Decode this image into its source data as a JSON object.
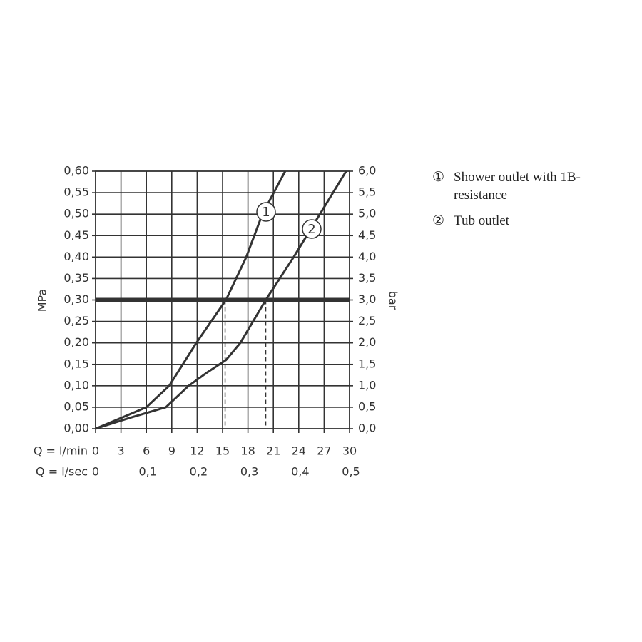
{
  "chart_data": {
    "type": "line",
    "x_label": "Q = l/min",
    "x2_label": "Q = l/sec",
    "y_label": "MPa",
    "y2_label": "bar",
    "xlim": [
      0,
      30
    ],
    "xticks": [
      0,
      3,
      6,
      9,
      12,
      15,
      18,
      21,
      24,
      27,
      30
    ],
    "x2lim": [
      0,
      0.5
    ],
    "x2ticks": [
      {
        "value": 0,
        "label": "0"
      },
      {
        "value": 0.1,
        "label": "0,1"
      },
      {
        "value": 0.2,
        "label": "0,2"
      },
      {
        "value": 0.3,
        "label": "0,3"
      },
      {
        "value": 0.4,
        "label": "0,4"
      },
      {
        "value": 0.5,
        "label": "0,5"
      }
    ],
    "ylim": [
      0,
      0.6
    ],
    "yticks": [
      {
        "value": 0,
        "label": "0,00"
      },
      {
        "value": 0.05,
        "label": "0,05"
      },
      {
        "value": 0.1,
        "label": "0,10"
      },
      {
        "value": 0.15,
        "label": "0,15"
      },
      {
        "value": 0.2,
        "label": "0,20"
      },
      {
        "value": 0.25,
        "label": "0,25"
      },
      {
        "value": 0.3,
        "label": "0,30"
      },
      {
        "value": 0.35,
        "label": "0,35"
      },
      {
        "value": 0.4,
        "label": "0,40"
      },
      {
        "value": 0.45,
        "label": "0,45"
      },
      {
        "value": 0.5,
        "label": "0,50"
      },
      {
        "value": 0.55,
        "label": "0,55"
      },
      {
        "value": 0.6,
        "label": "0,60"
      }
    ],
    "y2lim": [
      0,
      6
    ],
    "y2ticks": [
      {
        "value": 0,
        "label": "0,0"
      },
      {
        "value": 0.5,
        "label": "0,5"
      },
      {
        "value": 1,
        "label": "1,0"
      },
      {
        "value": 1.5,
        "label": "1,5"
      },
      {
        "value": 2,
        "label": "2,0"
      },
      {
        "value": 2.5,
        "label": "2,5"
      },
      {
        "value": 3,
        "label": "3,0"
      },
      {
        "value": 3.5,
        "label": "3,5"
      },
      {
        "value": 4,
        "label": "4,0"
      },
      {
        "value": 4.5,
        "label": "4,5"
      },
      {
        "value": 5,
        "label": "5,0"
      },
      {
        "value": 5.5,
        "label": "5,5"
      },
      {
        "value": 6,
        "label": "6,0"
      }
    ],
    "grid": true,
    "reference_line": 0.3,
    "reference_drops": [
      15.3,
      20.1
    ],
    "series": [
      {
        "name": "Shower outlet with 1B-resistance",
        "marker": "①",
        "label": "1",
        "color": "#333333",
        "x": [
          0,
          3,
          6,
          8.7,
          11.9,
          15.4,
          17.8,
          19.7,
          22.4
        ],
        "values": [
          0,
          0.025,
          0.05,
          0.1,
          0.2,
          0.3,
          0.4,
          0.5,
          0.6
        ]
      },
      {
        "name": "Tub outlet",
        "marker": "②",
        "label": "2",
        "color": "#333333",
        "x": [
          0,
          4,
          8.3,
          11,
          13.1,
          15.4,
          17.1,
          18.6,
          20.1,
          23.4,
          26.5,
          29.6
        ],
        "values": [
          0,
          0.025,
          0.05,
          0.1,
          0.13,
          0.16,
          0.2,
          0.25,
          0.3,
          0.4,
          0.5,
          0.6
        ]
      }
    ]
  }
}
